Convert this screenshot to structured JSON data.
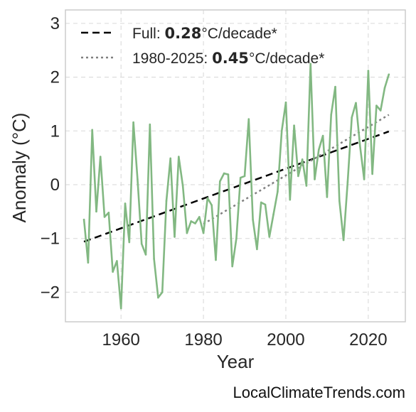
{
  "chart_data": {
    "type": "line",
    "xlabel": "Year",
    "ylabel": "Anomaly (°C)",
    "xlim": [
      1946.5,
      2029
    ],
    "ylim": [
      -2.55,
      3.25
    ],
    "xticks": [
      1960,
      1980,
      2000,
      2020
    ],
    "yticks": [
      -2,
      -1,
      0,
      1,
      2,
      3
    ],
    "ytick_labels": [
      "−2",
      "−1",
      "0",
      "1",
      "2",
      "3"
    ],
    "grid": true,
    "legend_position": "top-left",
    "colors": {
      "series": "#82b882",
      "full_trend": "#000000",
      "recent_trend": "#808080",
      "grid": "#dddddd",
      "frame": "#cccccc"
    },
    "series": [
      {
        "x": [
          1951,
          1952,
          1953,
          1954,
          1955,
          1956,
          1957,
          1958,
          1959,
          1960,
          1961,
          1962,
          1963,
          1964,
          1965,
          1966,
          1967,
          1968,
          1969,
          1970,
          1971,
          1972,
          1973,
          1974,
          1975,
          1976,
          1977,
          1978,
          1979,
          1980,
          1981,
          1982,
          1983,
          1984,
          1985,
          1986,
          1987,
          1988,
          1989,
          1990,
          1991,
          1992,
          1993,
          1994,
          1995,
          1996,
          1997,
          1998,
          1999,
          2000,
          2001,
          2002,
          2003,
          2004,
          2005,
          2006,
          2007,
          2008,
          2009,
          2010,
          2011,
          2012,
          2013,
          2014,
          2015,
          2016,
          2017,
          2018,
          2019,
          2020,
          2021,
          2022,
          2023,
          2024,
          2025
        ],
        "y": [
          -0.65,
          -1.45,
          1.02,
          -0.5,
          0.52,
          -0.6,
          -0.52,
          -1.62,
          -1.42,
          -2.3,
          -0.35,
          -1.07,
          1.16,
          0.1,
          -1.1,
          -1.3,
          1.12,
          -1.38,
          -2.1,
          -2.0,
          -0.3,
          0.49,
          -0.97,
          0.52,
          -0.02,
          -0.9,
          -0.68,
          -0.72,
          -0.6,
          -0.9,
          -0.25,
          -0.38,
          -1.4,
          0.06,
          0.21,
          0.19,
          -1.52,
          -1.0,
          0.13,
          0.16,
          1.22,
          -0.65,
          -1.2,
          -0.33,
          -0.37,
          -0.97,
          -0.55,
          -0.13,
          1.0,
          1.53,
          -0.28,
          1.1,
          0.16,
          0.47,
          -0.02,
          2.25,
          0.1,
          0.65,
          0.91,
          -0.23,
          1.3,
          1.82,
          -0.3,
          -1.03,
          0.05,
          1.25,
          1.52,
          0.72,
          0.1,
          2.12,
          0.2,
          1.47,
          1.38,
          1.8,
          2.05
        ]
      }
    ],
    "trend_lines": [
      {
        "x": [
          1951,
          2025
        ],
        "y": [
          -1.06,
          0.99
        ]
      },
      {
        "x": [
          1980,
          2025
        ],
        "y": [
          -0.73,
          1.3
        ]
      }
    ],
    "legend": [
      {
        "prefix": "Full: ",
        "value": "0.28",
        "suffix": "°C/decade*"
      },
      {
        "prefix": "1980-2025: ",
        "value": "0.45",
        "suffix": "°C/decade*"
      }
    ],
    "watermark": "LocalClimateTrends.com"
  }
}
